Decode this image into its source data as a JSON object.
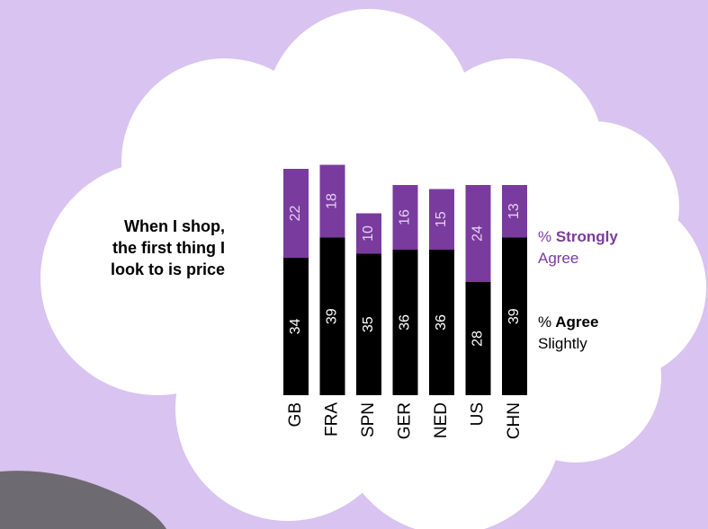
{
  "chart_data": {
    "type": "stacked-bar",
    "title": [
      "When I shop,",
      "the first thing I",
      "look to is price"
    ],
    "categories": [
      "GB",
      "FRA",
      "SPN",
      "GER",
      "NED",
      "US",
      "CHN"
    ],
    "series": [
      {
        "name": "% Agree Slightly",
        "color": "#000000",
        "values": [
          34,
          39,
          35,
          36,
          36,
          28,
          39
        ]
      },
      {
        "name": "% Strongly Agree",
        "color": "#7a3b9e",
        "values": [
          22,
          18,
          10,
          16,
          15,
          24,
          13
        ]
      }
    ]
  }
}
